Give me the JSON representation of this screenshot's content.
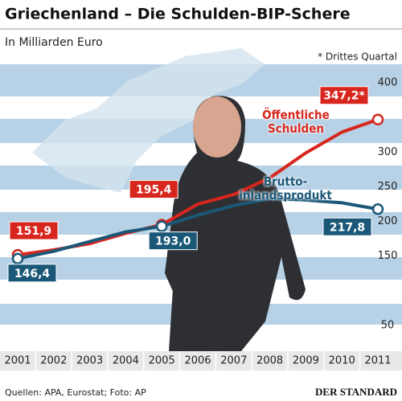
{
  "chart_data": {
    "type": "line",
    "title": "Griechenland – Die Schulden-BIP-Schere",
    "subtitle": "In Milliarden Euro",
    "note": "* Drittes Quartal",
    "source": "Quellen: APA, Eurostat; Foto: AP",
    "publisher": "DER STANDARD",
    "categories": [
      "2001",
      "2002",
      "2003",
      "2004",
      "2005",
      "2006",
      "2007",
      "2008",
      "2009",
      "2010",
      "2011"
    ],
    "series": [
      {
        "name": "Öffentliche Schulden",
        "color": "#d7261e",
        "values": [
          151.9,
          159,
          168,
          183,
          195.4,
          225,
          239,
          263,
          299,
          329,
          347.2
        ],
        "value_labels": [
          "151,9",
          null,
          null,
          null,
          "195,4",
          null,
          null,
          null,
          null,
          null,
          "347,2*"
        ]
      },
      {
        "name": "Brutto-inlandsprodukt",
        "color": "#1b5878",
        "values": [
          146.4,
          157,
          171,
          185,
          193.0,
          209,
          223,
          233,
          231,
          227,
          217.8
        ],
        "value_labels": [
          "146,4",
          null,
          null,
          null,
          "193,0",
          null,
          null,
          null,
          null,
          null,
          "217,8"
        ]
      }
    ],
    "ylim": [
      0,
      420
    ],
    "yticks": [
      50,
      150,
      200,
      250,
      300,
      400
    ],
    "grid": false
  }
}
